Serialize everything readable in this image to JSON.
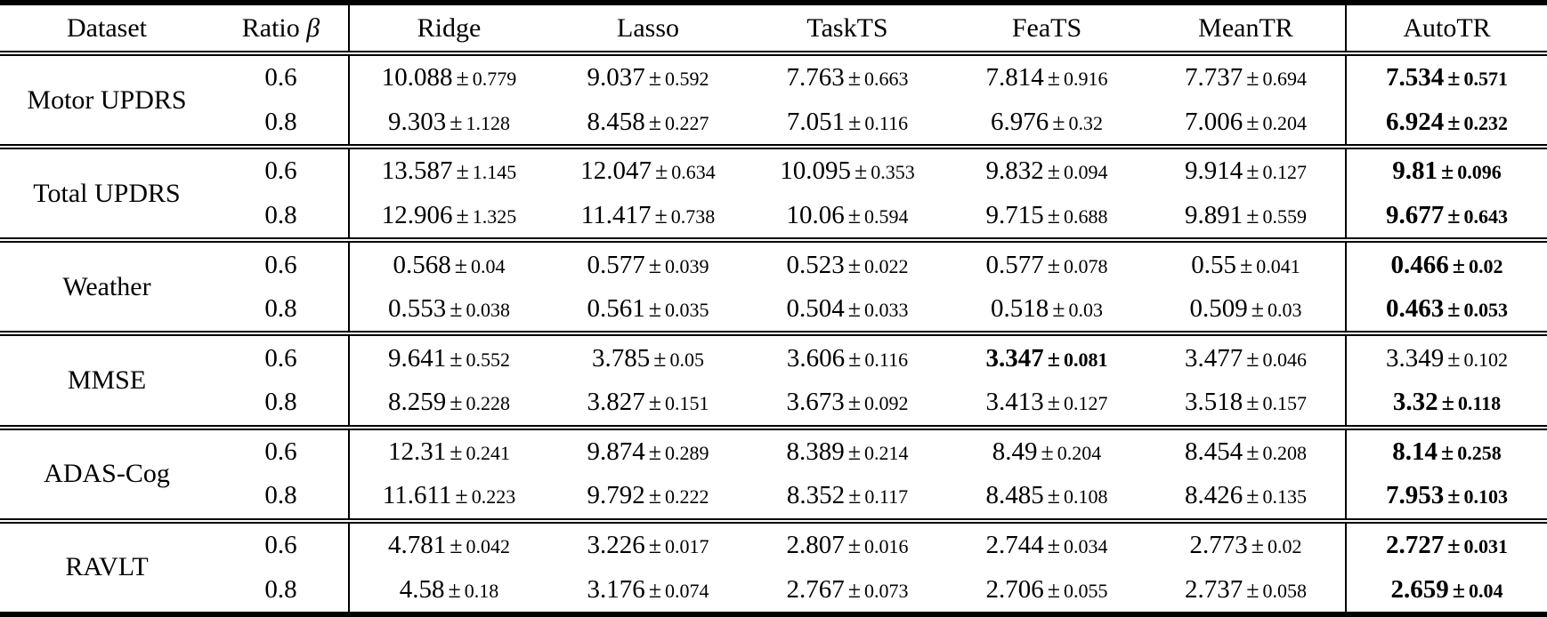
{
  "page": {
    "background": "#ffffff",
    "text_color": "#000000",
    "rule_color": "#000000"
  },
  "table": {
    "plus_minus": "±",
    "columns": [
      {
        "label": "Dataset"
      },
      {
        "label": "Ratio",
        "math_symbol": "β"
      },
      {
        "label": "Ridge"
      },
      {
        "label": "Lasso"
      },
      {
        "label": "TaskTS"
      },
      {
        "label": "FeaTS"
      },
      {
        "label": "MeanTR"
      },
      {
        "label": "AutoTR"
      }
    ],
    "groups": [
      {
        "dataset": "Motor UPDRS",
        "rows": [
          {
            "ratio": "0.6",
            "cells": [
              {
                "mean": "10.088",
                "std": "0.779",
                "bold": false
              },
              {
                "mean": "9.037",
                "std": "0.592",
                "bold": false
              },
              {
                "mean": "7.763",
                "std": "0.663",
                "bold": false
              },
              {
                "mean": "7.814",
                "std": "0.916",
                "bold": false
              },
              {
                "mean": "7.737",
                "std": "0.694",
                "bold": false
              },
              {
                "mean": "7.534",
                "std": "0.571",
                "bold": true
              }
            ]
          },
          {
            "ratio": "0.8",
            "cells": [
              {
                "mean": "9.303",
                "std": "1.128",
                "bold": false
              },
              {
                "mean": "8.458",
                "std": "0.227",
                "bold": false
              },
              {
                "mean": "7.051",
                "std": "0.116",
                "bold": false
              },
              {
                "mean": "6.976",
                "std": "0.32",
                "bold": false
              },
              {
                "mean": "7.006",
                "std": "0.204",
                "bold": false
              },
              {
                "mean": "6.924",
                "std": "0.232",
                "bold": true
              }
            ]
          }
        ]
      },
      {
        "dataset": "Total UPDRS",
        "rows": [
          {
            "ratio": "0.6",
            "cells": [
              {
                "mean": "13.587",
                "std": "1.145",
                "bold": false
              },
              {
                "mean": "12.047",
                "std": "0.634",
                "bold": false
              },
              {
                "mean": "10.095",
                "std": "0.353",
                "bold": false
              },
              {
                "mean": "9.832",
                "std": "0.094",
                "bold": false
              },
              {
                "mean": "9.914",
                "std": "0.127",
                "bold": false
              },
              {
                "mean": "9.81",
                "std": "0.096",
                "bold": true
              }
            ]
          },
          {
            "ratio": "0.8",
            "cells": [
              {
                "mean": "12.906",
                "std": "1.325",
                "bold": false
              },
              {
                "mean": "11.417",
                "std": "0.738",
                "bold": false
              },
              {
                "mean": "10.06",
                "std": "0.594",
                "bold": false
              },
              {
                "mean": "9.715",
                "std": "0.688",
                "bold": false
              },
              {
                "mean": "9.891",
                "std": "0.559",
                "bold": false
              },
              {
                "mean": "9.677",
                "std": "0.643",
                "bold": true
              }
            ]
          }
        ]
      },
      {
        "dataset": "Weather",
        "rows": [
          {
            "ratio": "0.6",
            "cells": [
              {
                "mean": "0.568",
                "std": "0.04",
                "bold": false
              },
              {
                "mean": "0.577",
                "std": "0.039",
                "bold": false
              },
              {
                "mean": "0.523",
                "std": "0.022",
                "bold": false
              },
              {
                "mean": "0.577",
                "std": "0.078",
                "bold": false
              },
              {
                "mean": "0.55",
                "std": "0.041",
                "bold": false
              },
              {
                "mean": "0.466",
                "std": "0.02",
                "bold": true
              }
            ]
          },
          {
            "ratio": "0.8",
            "cells": [
              {
                "mean": "0.553",
                "std": "0.038",
                "bold": false
              },
              {
                "mean": "0.561",
                "std": "0.035",
                "bold": false
              },
              {
                "mean": "0.504",
                "std": "0.033",
                "bold": false
              },
              {
                "mean": "0.518",
                "std": "0.03",
                "bold": false
              },
              {
                "mean": "0.509",
                "std": "0.03",
                "bold": false
              },
              {
                "mean": "0.463",
                "std": "0.053",
                "bold": true
              }
            ]
          }
        ]
      },
      {
        "dataset": "MMSE",
        "rows": [
          {
            "ratio": "0.6",
            "cells": [
              {
                "mean": "9.641",
                "std": "0.552",
                "bold": false
              },
              {
                "mean": "3.785",
                "std": "0.05",
                "bold": false
              },
              {
                "mean": "3.606",
                "std": "0.116",
                "bold": false
              },
              {
                "mean": "3.347",
                "std": "0.081",
                "bold": true
              },
              {
                "mean": "3.477",
                "std": "0.046",
                "bold": false
              },
              {
                "mean": "3.349",
                "std": "0.102",
                "bold": false
              }
            ]
          },
          {
            "ratio": "0.8",
            "cells": [
              {
                "mean": "8.259",
                "std": "0.228",
                "bold": false
              },
              {
                "mean": "3.827",
                "std": "0.151",
                "bold": false
              },
              {
                "mean": "3.673",
                "std": "0.092",
                "bold": false
              },
              {
                "mean": "3.413",
                "std": "0.127",
                "bold": false
              },
              {
                "mean": "3.518",
                "std": "0.157",
                "bold": false
              },
              {
                "mean": "3.32",
                "std": "0.118",
                "bold": true
              }
            ]
          }
        ]
      },
      {
        "dataset": "ADAS-Cog",
        "rows": [
          {
            "ratio": "0.6",
            "cells": [
              {
                "mean": "12.31",
                "std": "0.241",
                "bold": false
              },
              {
                "mean": "9.874",
                "std": "0.289",
                "bold": false
              },
              {
                "mean": "8.389",
                "std": "0.214",
                "bold": false
              },
              {
                "mean": "8.49",
                "std": "0.204",
                "bold": false
              },
              {
                "mean": "8.454",
                "std": "0.208",
                "bold": false
              },
              {
                "mean": "8.14",
                "std": "0.258",
                "bold": true
              }
            ]
          },
          {
            "ratio": "0.8",
            "cells": [
              {
                "mean": "11.611",
                "std": "0.223",
                "bold": false
              },
              {
                "mean": "9.792",
                "std": "0.222",
                "bold": false
              },
              {
                "mean": "8.352",
                "std": "0.117",
                "bold": false
              },
              {
                "mean": "8.485",
                "std": "0.108",
                "bold": false
              },
              {
                "mean": "8.426",
                "std": "0.135",
                "bold": false
              },
              {
                "mean": "7.953",
                "std": "0.103",
                "bold": true
              }
            ]
          }
        ]
      },
      {
        "dataset": "RAVLT",
        "rows": [
          {
            "ratio": "0.6",
            "cells": [
              {
                "mean": "4.781",
                "std": "0.042",
                "bold": false
              },
              {
                "mean": "3.226",
                "std": "0.017",
                "bold": false
              },
              {
                "mean": "2.807",
                "std": "0.016",
                "bold": false
              },
              {
                "mean": "2.744",
                "std": "0.034",
                "bold": false
              },
              {
                "mean": "2.773",
                "std": "0.02",
                "bold": false
              },
              {
                "mean": "2.727",
                "std": "0.031",
                "bold": true
              }
            ]
          },
          {
            "ratio": "0.8",
            "cells": [
              {
                "mean": "4.58",
                "std": "0.18",
                "bold": false
              },
              {
                "mean": "3.176",
                "std": "0.074",
                "bold": false
              },
              {
                "mean": "2.767",
                "std": "0.073",
                "bold": false
              },
              {
                "mean": "2.706",
                "std": "0.055",
                "bold": false
              },
              {
                "mean": "2.737",
                "std": "0.058",
                "bold": false
              },
              {
                "mean": "2.659",
                "std": "0.04",
                "bold": true
              }
            ]
          }
        ]
      }
    ]
  }
}
